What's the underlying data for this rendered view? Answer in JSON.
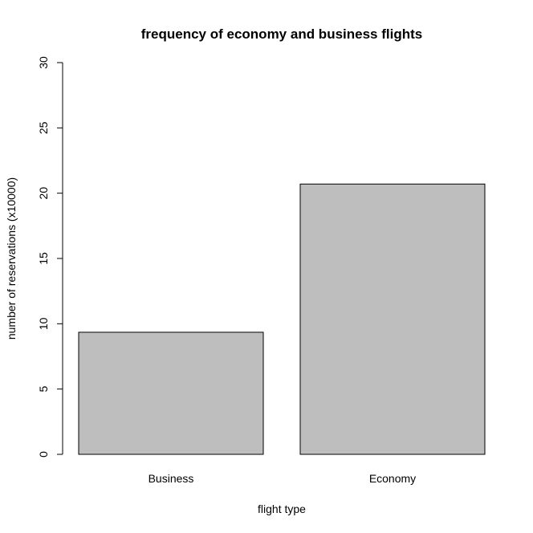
{
  "chart_data": {
    "type": "bar",
    "title": "frequency of economy and business flights",
    "xlabel": "flight type",
    "ylabel": "number of reservations (x10000)",
    "categories": [
      "Business",
      "Economy"
    ],
    "values": [
      9.35,
      20.7
    ],
    "ylim": [
      0,
      30
    ],
    "yticks": [
      "0",
      "5",
      "10",
      "15",
      "20",
      "25",
      "30"
    ],
    "grid": false,
    "bar_color": "#bebebe",
    "border_color": "#000000"
  }
}
